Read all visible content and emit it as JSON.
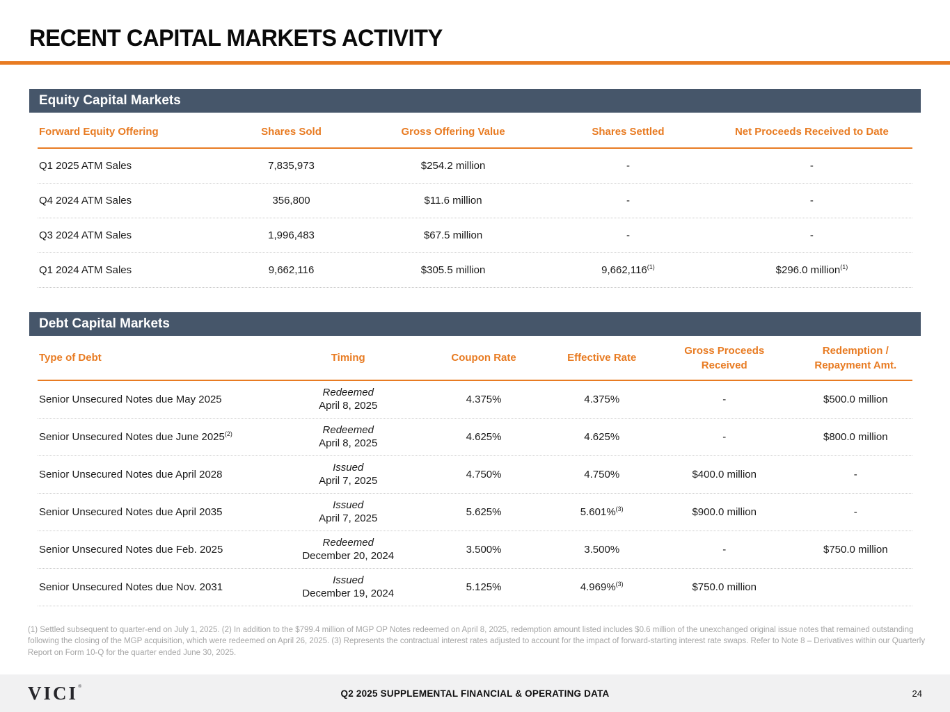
{
  "page": {
    "title": "RECENT CAPITAL MARKETS ACTIVITY"
  },
  "colors": {
    "accent_orange": "#E87B22",
    "section_header_slate": "#46566A",
    "footer_background": "#F1F1F2"
  },
  "equity_section": {
    "title": "Equity Capital Markets",
    "columns": [
      "Forward Equity Offering",
      "Shares Sold",
      "Gross Offering Value",
      "Shares Settled",
      "Net Proceeds Received to Date"
    ],
    "rows": [
      [
        "Q1 2025 ATM Sales",
        "7,835,973",
        "$254.2 million",
        "-",
        "-"
      ],
      [
        "Q4 2024 ATM Sales",
        "356,800",
        "$11.6 million",
        "-",
        "-"
      ],
      [
        "Q3 2024 ATM Sales",
        "1,996,483",
        "$67.5 million",
        "-",
        "-"
      ],
      [
        "Q1 2024 ATM Sales",
        "9,662,116",
        "$305.5 million",
        "9,662,116^(1)",
        "$296.0 million^(1)"
      ]
    ]
  },
  "debt_section": {
    "title": "Debt Capital Markets",
    "columns": [
      "Type of Debt",
      "Timing",
      "Coupon Rate",
      "Effective Rate",
      "Gross Proceeds\nReceived",
      "Redemption /\nRepayment Amt."
    ],
    "rows": [
      [
        "Senior Unsecured Notes due May 2025",
        {
          "status": "Redeemed",
          "date": "April 8, 2025"
        },
        "4.375%",
        "4.375%",
        "-",
        "$500.0 million"
      ],
      [
        "Senior Unsecured Notes due June 2025^(2)",
        {
          "status": "Redeemed",
          "date": "April 8, 2025"
        },
        "4.625%",
        "4.625%",
        "-",
        "$800.0 million"
      ],
      [
        "Senior Unsecured Notes due April 2028",
        {
          "status": "Issued",
          "date": "April 7, 2025"
        },
        "4.750%",
        "4.750%",
        "$400.0 million",
        "-"
      ],
      [
        "Senior Unsecured Notes due April 2035",
        {
          "status": "Issued",
          "date": "April 7, 2025"
        },
        "5.625%",
        "5.601%^(3)",
        "$900.0 million",
        "-"
      ],
      [
        "Senior Unsecured Notes due Feb. 2025",
        {
          "status": "Redeemed",
          "date": "December 20, 2024"
        },
        "3.500%",
        "3.500%",
        "-",
        "$750.0 million"
      ],
      [
        "Senior Unsecured Notes due Nov. 2031",
        {
          "status": "Issued",
          "date": "December 19, 2024"
        },
        "5.125%",
        "4.969%^(3)",
        "$750.0 million",
        ""
      ]
    ]
  },
  "footnote": "(1) Settled subsequent to quarter-end on July 1, 2025. (2) In addition to the $799.4 million of MGP OP Notes redeemed on April 8, 2025, redemption amount listed includes $0.6 million of the unexchanged original issue notes that remained outstanding following the closing of the MGP acquisition, which were redeemed on April 26, 2025. (3) Represents the contractual interest rates adjusted to account for the impact of forward-starting interest rate swaps. Refer to Note 8 – Derivatives within our Quarterly Report on Form 10-Q for the quarter ended June 30, 2025.",
  "footer": {
    "logo": "VICI",
    "logo_mark": "®",
    "center": "Q2 2025 SUPPLEMENTAL FINANCIAL & OPERATING DATA",
    "page_number": "24"
  }
}
